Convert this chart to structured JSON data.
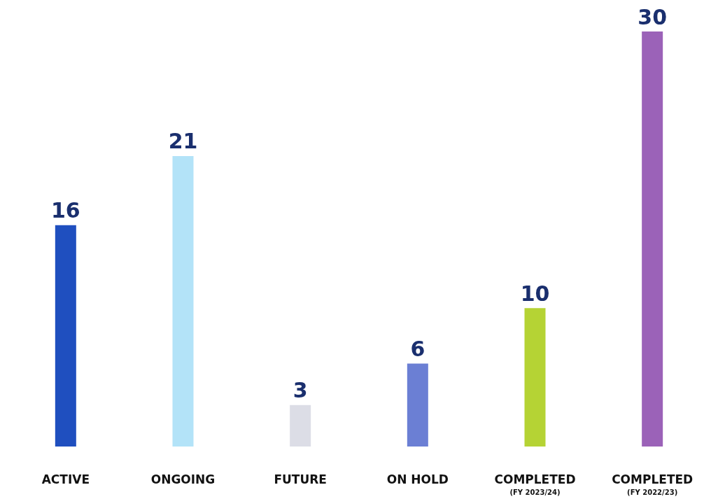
{
  "chart_data": {
    "type": "bar",
    "categories": [
      "ACTIVE",
      "ONGOING",
      "FUTURE",
      "ON HOLD",
      "COMPLETED\n(FY 2023/24)",
      "COMPLETED\n(FY 2022/23)"
    ],
    "values": [
      16,
      21,
      3,
      6,
      10,
      30
    ],
    "colors": [
      "#1f4fbf",
      "#b3e3f8",
      "#dcdde6",
      "#6b7fd4",
      "#b5d334",
      "#9b62b8"
    ],
    "data_labels": true
  }
}
